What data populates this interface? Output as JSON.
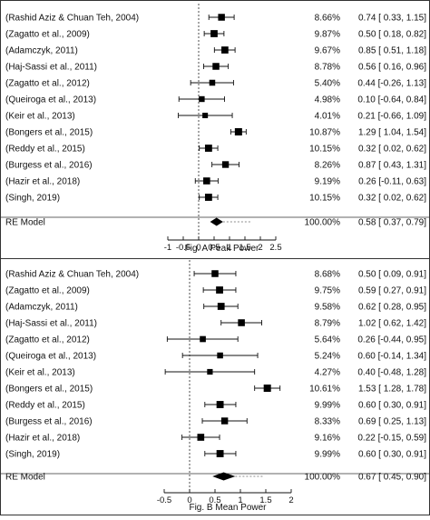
{
  "chart_data": [
    {
      "type": "forest",
      "caption": "Fig. A Peak Power",
      "xlim": [
        -1,
        2.5
      ],
      "ticks": [
        "-1",
        "-0.5",
        "0",
        "0.5",
        "1",
        "1.5",
        "2",
        "2.5"
      ],
      "studies": [
        {
          "label": "(Rashid Aziz & Chuan Teh, 2004)",
          "weight": "8.66%",
          "ci_text": "0.74 [ 0.33, 1.15]",
          "est": 0.74,
          "lo": 0.33,
          "hi": 1.15
        },
        {
          "label": "(Zagatto et al., 2009)",
          "weight": "9.87%",
          "ci_text": "0.50 [ 0.18, 0.82]",
          "est": 0.5,
          "lo": 0.18,
          "hi": 0.82
        },
        {
          "label": "(Adamczyk, 2011)",
          "weight": "9.67%",
          "ci_text": "0.85 [ 0.51, 1.18]",
          "est": 0.85,
          "lo": 0.51,
          "hi": 1.18
        },
        {
          "label": "(Haj-Sassi et al., 2011)",
          "weight": "8.78%",
          "ci_text": "0.56 [ 0.16, 0.96]",
          "est": 0.56,
          "lo": 0.16,
          "hi": 0.96
        },
        {
          "label": "(Zagatto et al., 2012)",
          "weight": "5.40%",
          "ci_text": "0.44 [-0.26, 1.13]",
          "est": 0.44,
          "lo": -0.26,
          "hi": 1.13
        },
        {
          "label": "(Queiroga et al., 2013)",
          "weight": "4.98%",
          "ci_text": "0.10 [-0.64, 0.84]",
          "est": 0.1,
          "lo": -0.64,
          "hi": 0.84
        },
        {
          "label": "(Keir et al., 2013)",
          "weight": "4.01%",
          "ci_text": "0.21 [-0.66, 1.09]",
          "est": 0.21,
          "lo": -0.66,
          "hi": 1.09
        },
        {
          "label": "(Bongers et al., 2015)",
          "weight": "10.87%",
          "ci_text": "1.29 [ 1.04, 1.54]",
          "est": 1.29,
          "lo": 1.04,
          "hi": 1.54
        },
        {
          "label": "(Reddy et al., 2015)",
          "weight": "10.15%",
          "ci_text": "0.32 [ 0.02, 0.62]",
          "est": 0.32,
          "lo": 0.02,
          "hi": 0.62
        },
        {
          "label": "(Burgess et al., 2016)",
          "weight": "8.26%",
          "ci_text": "0.87 [ 0.43, 1.31]",
          "est": 0.87,
          "lo": 0.43,
          "hi": 1.31
        },
        {
          "label": "(Hazir et al., 2018)",
          "weight": "9.19%",
          "ci_text": "0.26 [-0.11, 0.63]",
          "est": 0.26,
          "lo": -0.11,
          "hi": 0.63
        },
        {
          "label": "(Singh, 2019)",
          "weight": "10.15%",
          "ci_text": "0.32 [ 0.02, 0.62]",
          "est": 0.32,
          "lo": 0.02,
          "hi": 0.62
        }
      ],
      "summary": {
        "label": "RE Model",
        "weight": "100.00%",
        "ci_text": "0.58 [ 0.37, 0.79]",
        "est": 0.58,
        "lo": 0.37,
        "hi": 0.79
      }
    },
    {
      "type": "forest",
      "caption": "Fig. B Mean Power",
      "xlim": [
        -0.5,
        2
      ],
      "ticks": [
        "-0.5",
        "0",
        "0.5",
        "1",
        "1.5",
        "2"
      ],
      "studies": [
        {
          "label": "(Rashid Aziz & Chuan Teh, 2004)",
          "weight": "8.68%",
          "ci_text": "0.50 [ 0.09, 0.91]",
          "est": 0.5,
          "lo": 0.09,
          "hi": 0.91
        },
        {
          "label": "(Zagatto et al., 2009)",
          "weight": "9.75%",
          "ci_text": "0.59 [ 0.27, 0.91]",
          "est": 0.59,
          "lo": 0.27,
          "hi": 0.91
        },
        {
          "label": "(Adamczyk, 2011)",
          "weight": "9.58%",
          "ci_text": "0.62 [ 0.28, 0.95]",
          "est": 0.62,
          "lo": 0.28,
          "hi": 0.95
        },
        {
          "label": "(Haj-Sassi et al., 2011)",
          "weight": "8.79%",
          "ci_text": "1.02 [ 0.62, 1.42]",
          "est": 1.02,
          "lo": 0.62,
          "hi": 1.42
        },
        {
          "label": "(Zagatto et al., 2012)",
          "weight": "5.64%",
          "ci_text": "0.26 [-0.44, 0.95]",
          "est": 0.26,
          "lo": -0.44,
          "hi": 0.95
        },
        {
          "label": "(Queiroga et al., 2013)",
          "weight": "5.24%",
          "ci_text": "0.60 [-0.14, 1.34]",
          "est": 0.6,
          "lo": -0.14,
          "hi": 1.34
        },
        {
          "label": "(Keir et al., 2013)",
          "weight": "4.27%",
          "ci_text": "0.40 [-0.48, 1.28]",
          "est": 0.4,
          "lo": -0.48,
          "hi": 1.28
        },
        {
          "label": "(Bongers et al., 2015)",
          "weight": "10.61%",
          "ci_text": "1.53 [ 1.28, 1.78]",
          "est": 1.53,
          "lo": 1.28,
          "hi": 1.78
        },
        {
          "label": "(Reddy et al., 2015)",
          "weight": "9.99%",
          "ci_text": "0.60 [ 0.30, 0.91]",
          "est": 0.6,
          "lo": 0.3,
          "hi": 0.91
        },
        {
          "label": "(Burgess et al., 2016)",
          "weight": "8.33%",
          "ci_text": "0.69 [ 0.25, 1.13]",
          "est": 0.69,
          "lo": 0.25,
          "hi": 1.13
        },
        {
          "label": "(Hazir et al., 2018)",
          "weight": "9.16%",
          "ci_text": "0.22 [-0.15, 0.59]",
          "est": 0.22,
          "lo": -0.15,
          "hi": 0.59
        },
        {
          "label": "(Singh, 2019)",
          "weight": "9.99%",
          "ci_text": "0.60 [ 0.30, 0.91]",
          "est": 0.6,
          "lo": 0.3,
          "hi": 0.91
        }
      ],
      "summary": {
        "label": "RE Model",
        "weight": "100.00%",
        "ci_text": "0.67 [ 0.45, 0.90]",
        "est": 0.67,
        "lo": 0.45,
        "hi": 0.9
      }
    }
  ]
}
